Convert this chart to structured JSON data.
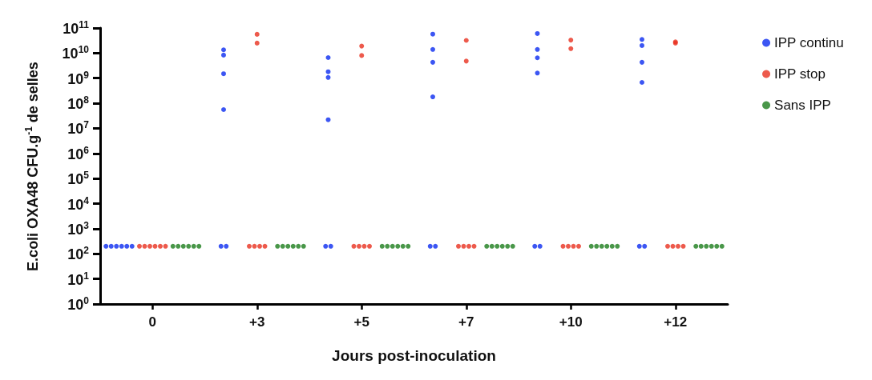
{
  "chart_data": {
    "type": "scatter",
    "xlabel": "Jours post-inoculation",
    "ylabel": "E.coli OXA48 CFU.g$^{-1}$ de selles",
    "categories": [
      "0",
      "+3",
      "+5",
      "+7",
      "+10",
      "+12"
    ],
    "series": [
      {
        "name": "IPP continu",
        "color": "#0b2cf0",
        "x": [
          "0",
          "0",
          "0",
          "0",
          "0",
          "0",
          "+3",
          "+3",
          "+3",
          "+3",
          "+3",
          "+3",
          "+5",
          "+5",
          "+5",
          "+5",
          "+5",
          "+5",
          "+7",
          "+7",
          "+7",
          "+7",
          "+7",
          "+7",
          "+10",
          "+10",
          "+10",
          "+10",
          "+10",
          "+10",
          "+12",
          "+12",
          "+12",
          "+12",
          "+12",
          "+12"
        ],
        "values": [
          200,
          200,
          200,
          200,
          200,
          200,
          8300000000,
          13500000000,
          1500000000,
          56000000,
          200,
          200,
          6600000000,
          1800000000,
          1070000000,
          22000000,
          200,
          200,
          57000000000,
          14000000000,
          4300000000,
          180000000,
          200,
          200,
          60000000000,
          14000000000,
          6500000000,
          1600000000,
          200,
          200,
          35000000000,
          20000000000,
          4300000000,
          680000000,
          200,
          200
        ]
      },
      {
        "name": "IPP stop",
        "color": "#e8311f",
        "x": [
          "0",
          "0",
          "0",
          "0",
          "0",
          "0",
          "+3",
          "+3",
          "+3",
          "+3",
          "+3",
          "+3",
          "+5",
          "+5",
          "+5",
          "+5",
          "+5",
          "+5",
          "+7",
          "+7",
          "+7",
          "+7",
          "+7",
          "+7",
          "+10",
          "+10",
          "+10",
          "+10",
          "+10",
          "+10",
          "+12",
          "+12",
          "+12",
          "+12",
          "+12",
          "+12"
        ],
        "values": [
          200,
          200,
          200,
          200,
          200,
          200,
          56000000000,
          25000000000,
          200,
          200,
          200,
          200,
          19000000000,
          8000000000,
          200,
          200,
          200,
          200,
          32000000000,
          4800000000,
          200,
          200,
          200,
          200,
          33000000000,
          15000000000,
          200,
          200,
          200,
          200,
          28000000000,
          25000000000,
          200,
          200,
          200,
          200
        ]
      },
      {
        "name": "Sans IPP",
        "color": "#1b7d1b",
        "x": [
          "0",
          "0",
          "0",
          "0",
          "0",
          "0",
          "+3",
          "+3",
          "+3",
          "+3",
          "+3",
          "+3",
          "+5",
          "+5",
          "+5",
          "+5",
          "+5",
          "+5",
          "+7",
          "+7",
          "+7",
          "+7",
          "+7",
          "+7",
          "+10",
          "+10",
          "+10",
          "+10",
          "+10",
          "+10",
          "+12",
          "+12",
          "+12",
          "+12",
          "+12",
          "+12"
        ],
        "values": [
          200,
          200,
          200,
          200,
          200,
          200,
          200,
          200,
          200,
          200,
          200,
          200,
          200,
          200,
          200,
          200,
          200,
          200,
          200,
          200,
          200,
          200,
          200,
          200,
          200,
          200,
          200,
          200,
          200,
          200,
          200,
          200,
          200,
          200,
          200,
          200
        ]
      }
    ],
    "log": "y",
    "ylim": [
      1,
      100000000000
    ],
    "yticks": [
      {
        "value": 1,
        "label": "10$^{0}$"
      },
      {
        "value": 10,
        "label": "10$^{1}$"
      },
      {
        "value": 100,
        "label": "10$^{2}$"
      },
      {
        "value": 1000,
        "label": "10$^{3}$"
      },
      {
        "value": 10000,
        "label": "10$^{4}$"
      },
      {
        "value": 100000,
        "label": "10$^{5}$"
      },
      {
        "value": 1000000,
        "label": "10$^{6}$"
      },
      {
        "value": 10000000,
        "label": "10$^{7}$"
      },
      {
        "value": 100000000,
        "label": "10$^{8}$"
      },
      {
        "value": 1000000000,
        "label": "10$^{9}$"
      },
      {
        "value": 10000000000,
        "label": "10$^{10}$"
      },
      {
        "value": 100000000000,
        "label": "10$^{11}$"
      }
    ],
    "marker": "circle",
    "grid": false,
    "legend": "right"
  }
}
